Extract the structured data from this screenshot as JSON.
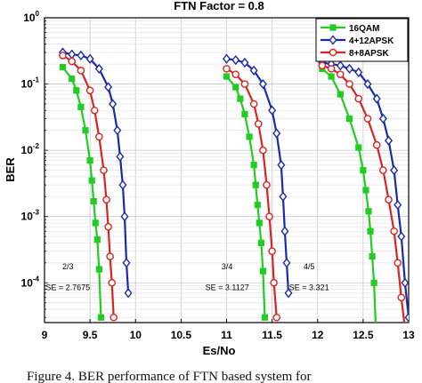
{
  "chart_data": {
    "type": "line",
    "title": "FTN Factor = 0.8",
    "xlabel": "Es/No",
    "ylabel": "BER",
    "xlim": [
      9,
      13
    ],
    "ylim_log10": [
      -4.6,
      0
    ],
    "yscale": "log",
    "x_ticks": [
      "9",
      "9.5",
      "10",
      "10.5",
      "11",
      "11.5",
      "12",
      "12.5",
      "13"
    ],
    "y_ticks": [
      {
        "base": "10",
        "exp": "0"
      },
      {
        "base": "10",
        "exp": "-1"
      },
      {
        "base": "10",
        "exp": "-2"
      },
      {
        "base": "10",
        "exp": "-3"
      },
      {
        "base": "10",
        "exp": "-4"
      }
    ],
    "grid": true,
    "legend_position": "top-right",
    "series": [
      {
        "name": "16QAM",
        "color": "#22cc22",
        "marker": "square",
        "segments": [
          {
            "x": [
              9.2,
              9.3,
              9.35,
              9.4,
              9.45,
              9.5,
              9.52,
              9.54,
              9.56,
              9.58,
              9.6,
              9.62
            ],
            "y": [
              0.18,
              0.12,
              0.08,
              0.045,
              0.02,
              0.007,
              0.0035,
              0.0017,
              0.0008,
              0.00045,
              0.00016,
              3e-05
            ]
          },
          {
            "x": [
              11.0,
              11.1,
              11.15,
              11.2,
              11.25,
              11.3,
              11.32,
              11.34,
              11.36,
              11.38,
              11.4,
              11.42
            ],
            "y": [
              0.13,
              0.09,
              0.06,
              0.035,
              0.016,
              0.006,
              0.003,
              0.0015,
              0.0008,
              0.0004,
              0.00015,
              3e-05
            ]
          },
          {
            "x": [
              12.05,
              12.15,
              12.25,
              12.35,
              12.45,
              12.5,
              12.53,
              12.56,
              12.58,
              12.6,
              12.62,
              12.64
            ],
            "y": [
              0.17,
              0.13,
              0.07,
              0.03,
              0.011,
              0.005,
              0.0025,
              0.0012,
              0.0006,
              0.00025,
              0.0001,
              2e-05
            ]
          }
        ]
      },
      {
        "name": "4+12APSK",
        "color": "#1a2aa8",
        "marker": "diamond",
        "segments": [
          {
            "x": [
              9.2,
              9.3,
              9.4,
              9.5,
              9.6,
              9.7,
              9.75,
              9.8,
              9.83,
              9.86,
              9.88,
              9.9,
              9.92
            ],
            "y": [
              0.3,
              0.28,
              0.27,
              0.24,
              0.17,
              0.09,
              0.05,
              0.02,
              0.008,
              0.003,
              0.001,
              0.0002,
              7e-05
            ]
          },
          {
            "x": [
              11.0,
              11.1,
              11.2,
              11.3,
              11.4,
              11.5,
              11.55,
              11.6,
              11.62,
              11.64,
              11.66,
              11.68
            ],
            "y": [
              0.24,
              0.23,
              0.21,
              0.16,
              0.1,
              0.04,
              0.018,
              0.006,
              0.002,
              0.0006,
              0.0002,
              7e-05
            ]
          },
          {
            "x": [
              12.05,
              12.15,
              12.25,
              12.35,
              12.45,
              12.55,
              12.65,
              12.72,
              12.78,
              12.84,
              12.88,
              12.92,
              12.96,
              13.0
            ],
            "y": [
              0.21,
              0.2,
              0.19,
              0.17,
              0.15,
              0.1,
              0.06,
              0.03,
              0.014,
              0.005,
              0.0015,
              0.0005,
              0.0001,
              3e-05
            ]
          }
        ]
      },
      {
        "name": "8+8APSK",
        "color": "#dd2222",
        "marker": "circle",
        "segments": [
          {
            "x": [
              9.2,
              9.3,
              9.4,
              9.5,
              9.55,
              9.6,
              9.65,
              9.68,
              9.7,
              9.72,
              9.74,
              9.76
            ],
            "y": [
              0.27,
              0.22,
              0.16,
              0.08,
              0.04,
              0.016,
              0.005,
              0.0018,
              0.0007,
              0.00025,
              0.0001,
              3e-05
            ]
          },
          {
            "x": [
              11.0,
              11.1,
              11.2,
              11.3,
              11.35,
              11.4,
              11.44,
              11.47,
              11.5,
              11.52,
              11.55
            ],
            "y": [
              0.17,
              0.14,
              0.1,
              0.05,
              0.025,
              0.01,
              0.003,
              0.001,
              0.0003,
              0.0001,
              3e-05
            ]
          },
          {
            "x": [
              12.05,
              12.15,
              12.25,
              12.35,
              12.45,
              12.55,
              12.65,
              12.72,
              12.78,
              12.84,
              12.88,
              12.92,
              12.96
            ],
            "y": [
              0.19,
              0.17,
              0.14,
              0.1,
              0.06,
              0.03,
              0.012,
              0.005,
              0.0018,
              0.0006,
              0.0002,
              6e-05,
              2e-05
            ]
          }
        ]
      }
    ],
    "annotations": [
      {
        "rate": "2/3",
        "se": "SE = 2.7675",
        "x": 9.55,
        "y_rate": 0.00016,
        "y_se": 7.8e-05
      },
      {
        "rate": "3/4",
        "se": "SE = 3.1127",
        "x": 11.3,
        "y_rate": 0.00016,
        "y_se": 7.8e-05
      },
      {
        "rate": "4/5",
        "se": "SE = 3.321",
        "x": 12.2,
        "y_rate": 0.00016,
        "y_se": 7.8e-05
      }
    ]
  },
  "caption": "Figure 4. BER performance of FTN based system for"
}
